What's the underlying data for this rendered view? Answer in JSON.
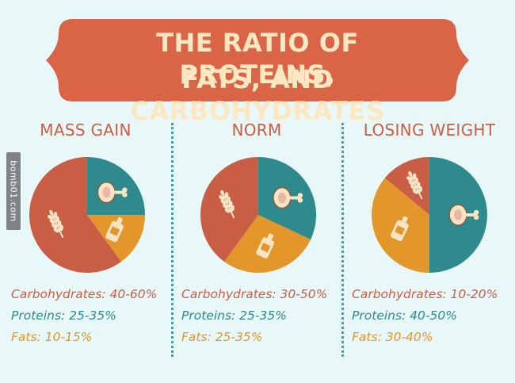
{
  "title": {
    "line1": "THE RATIO OF PROTEINS,",
    "line2": "FATS, AND CARBOHYDRATES"
  },
  "watermark": "bomb01.com",
  "colors": {
    "banner": "#d96446",
    "carbohydrates": "#c95e45",
    "proteins": "#2e8a8c",
    "fats": "#e3972a",
    "divider": "#4a9aa0",
    "background": "#e8f7f7"
  },
  "icons": {
    "carbohydrates": "wheat-icon",
    "proteins": "ham-icon",
    "fats": "oil-bottle-icon"
  },
  "chart_data": [
    {
      "type": "pie",
      "title": "MASS GAIN",
      "slices": [
        {
          "name": "Proteins",
          "value": 25,
          "range": [
            25,
            35
          ]
        },
        {
          "name": "Fats",
          "value": 15,
          "range": [
            10,
            15
          ]
        },
        {
          "name": "Carbohydrates",
          "value": 60,
          "range": [
            40,
            60
          ]
        }
      ],
      "legend": [
        "Carbohydrates: 40-60%",
        "Proteins: 25-35%",
        "Fats: 10-15%"
      ]
    },
    {
      "type": "pie",
      "title": "NORM",
      "slices": [
        {
          "name": "Proteins",
          "value": 32,
          "range": [
            25,
            35
          ]
        },
        {
          "name": "Fats",
          "value": 28,
          "range": [
            25,
            35
          ]
        },
        {
          "name": "Carbohydrates",
          "value": 40,
          "range": [
            30,
            50
          ]
        }
      ],
      "legend": [
        "Carbohydrates: 30-50%",
        "Proteins: 25-35%",
        "Fats: 25-35%"
      ]
    },
    {
      "type": "pie",
      "title": "LOSING WEIGHT",
      "slices": [
        {
          "name": "Proteins",
          "value": 50,
          "range": [
            40,
            50
          ]
        },
        {
          "name": "Fats",
          "value": 36,
          "range": [
            30,
            40
          ]
        },
        {
          "name": "Carbohydrates",
          "value": 14,
          "range": [
            10,
            20
          ]
        }
      ],
      "legend": [
        "Carbohydrates: 10-20%",
        "Proteins: 40-50%",
        "Fats: 30-40%"
      ]
    }
  ]
}
